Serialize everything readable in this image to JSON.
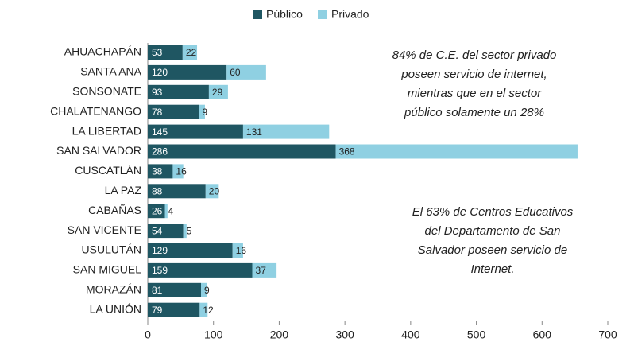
{
  "chart_data": {
    "type": "stacked_barh",
    "categories": [
      "AHUACHAPÁN",
      "SANTA ANA",
      "SONSONATE",
      "CHALATENANGO",
      "LA LIBERTAD",
      "SAN SALVADOR",
      "CUSCATLÁN",
      "LA PAZ",
      "CABAÑAS",
      "SAN VICENTE",
      "USULUTÁN",
      "SAN MIGUEL",
      "MORAZÁN",
      "LA UNIÓN"
    ],
    "series": [
      {
        "name": "Público",
        "color": "#1f5662",
        "values": [
          53,
          120,
          93,
          78,
          145,
          286,
          38,
          88,
          26,
          54,
          129,
          159,
          81,
          79
        ]
      },
      {
        "name": "Privado",
        "color": "#8fd0e2",
        "values": [
          22,
          60,
          29,
          9,
          131,
          368,
          16,
          20,
          4,
          5,
          16,
          37,
          9,
          12
        ]
      }
    ],
    "xlim": [
      0,
      700
    ],
    "xticks": [
      0,
      100,
      200,
      300,
      400,
      500,
      600,
      700
    ],
    "legend": "top",
    "annotations": [
      [
        "84% de C.E. del sector privado",
        "poseen servicio de internet,",
        "mientras que en el sector",
        "público solamente un 28%"
      ],
      [
        "El 63% de Centros Educativos",
        "del Departamento de San",
        "Salvador poseen servicio de",
        "Internet."
      ]
    ]
  }
}
